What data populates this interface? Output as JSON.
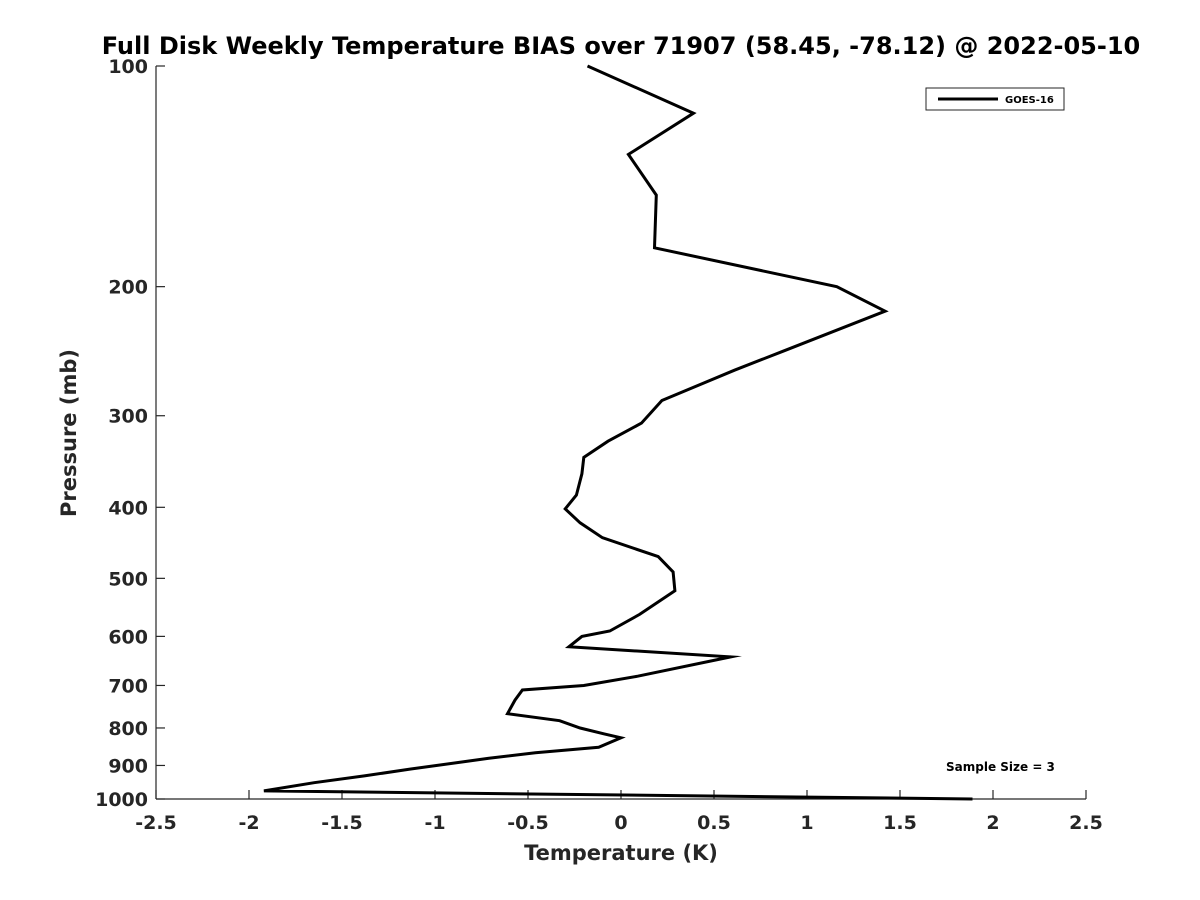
{
  "chart_data": {
    "type": "line",
    "title": "Full Disk Weekly Temperature BIAS over 71907 (58.45, -78.12) @ 2022-05-10",
    "xlabel": "Temperature (K)",
    "ylabel": "Pressure (mb)",
    "xlim": [
      -2.5,
      2.5
    ],
    "ylim": [
      100,
      1000
    ],
    "y_scale": "log",
    "y_reversed": true,
    "grid": false,
    "x_ticks": [
      -2.5,
      -2,
      -1.5,
      -1,
      -0.5,
      0,
      0.5,
      1,
      1.5,
      2,
      2.5
    ],
    "x_tick_labels": [
      "-2.5",
      "-2",
      "-1.5",
      "-1",
      "-0.5",
      "0",
      "0.5",
      "1",
      "1.5",
      "2",
      "2.5"
    ],
    "y_ticks": [
      100,
      200,
      300,
      400,
      500,
      600,
      700,
      800,
      900,
      1000
    ],
    "y_tick_labels": [
      "100",
      "200",
      "300",
      "400",
      "500",
      "600",
      "700",
      "800",
      "900",
      "1000"
    ],
    "legend": {
      "placement": "top-right",
      "entries": [
        "GOES-16"
      ]
    },
    "annotation": "Sample Size = 3",
    "series": [
      {
        "name": "GOES-16",
        "color": "#000000",
        "x": [
          -0.18,
          0.39,
          0.04,
          0.19,
          0.18,
          1.16,
          1.42,
          0.87,
          0.61,
          0.22,
          0.11,
          -0.07,
          -0.2,
          -0.21,
          -0.24,
          -0.3,
          -0.22,
          -0.1,
          0.2,
          0.28,
          0.29,
          0.1,
          -0.06,
          -0.21,
          -0.28,
          0.59,
          0.09,
          -0.2,
          -0.53,
          -0.57,
          -0.61,
          -0.33,
          -0.22,
          -0.09,
          0.0,
          -0.12,
          -0.46,
          -0.71,
          -1.13,
          -1.38,
          -1.65,
          -1.92,
          1.89
        ],
        "y": [
          100,
          116,
          132,
          150,
          177,
          200,
          216,
          245,
          260,
          286,
          307,
          325,
          342,
          360,
          385,
          402,
          420,
          440,
          467,
          490,
          520,
          560,
          590,
          600,
          620,
          640,
          680,
          700,
          710,
          733,
          765,
          782,
          800,
          815,
          825,
          850,
          865,
          880,
          910,
          930,
          950,
          975,
          1000
        ]
      }
    ]
  }
}
